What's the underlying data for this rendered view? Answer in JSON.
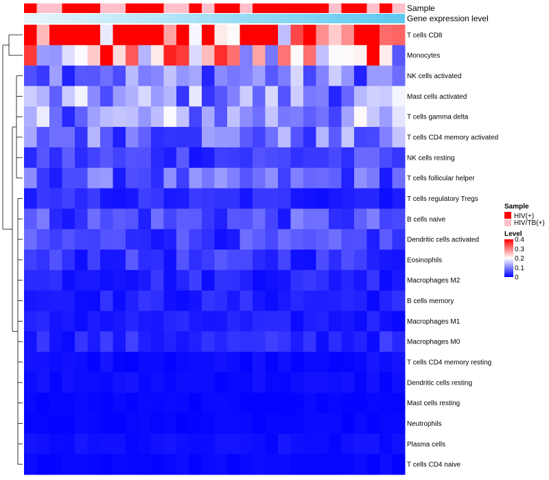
{
  "chart_data": {
    "type": "heatmap",
    "title": "",
    "annotation_tracks": [
      {
        "label": "Sample"
      },
      {
        "label": "Gene expression level"
      }
    ],
    "samples": {
      "count": 30,
      "groups": [
        "HIV(+)",
        "HIV/TB(+)",
        "HIV/TB(+)",
        "HIV(+)",
        "HIV(+)",
        "HIV(+)",
        "HIV/TB(+)",
        "HIV/TB(+)",
        "HIV(+)",
        "HIV(+)",
        "HIV(+)",
        "HIV/TB(+)",
        "HIV/TB(+)",
        "HIV(+)",
        "HIV/TB(+)",
        "HIV(+)",
        "HIV(+)",
        "HIV/TB(+)",
        "HIV(+)",
        "HIV(+)",
        "HIV(+)",
        "HIV(+)",
        "HIV(+)",
        "HIV(+)",
        "HIV/TB(+)",
        "HIV(+)",
        "HIV(+)",
        "HIV/TB(+)",
        "HIV(+)",
        "HIV/TB(+)"
      ]
    },
    "rows": [
      "T cells CD8",
      "Monocytes",
      "NK cells activated",
      "Mast cells activated",
      "T cells gamma delta",
      "T cells CD4 memory activated",
      "NK cells resting",
      "T cells follicular helper",
      "T cells regulatory  Tregs",
      "B cells naive",
      "Dendritic cells activated",
      "Eosinophils",
      "Macrophages M2",
      "B cells memory",
      "Macrophages M1",
      "Macrophages M0",
      "T cells CD4 memory resting",
      "Dendritic cells resting",
      "Mast cells resting",
      "Neutrophils",
      "Plasma cells",
      "T cells CD4 naive"
    ],
    "row_means": [
      0.36,
      0.24,
      0.1,
      0.11,
      0.12,
      0.09,
      0.05,
      0.07,
      0.03,
      0.06,
      0.05,
      0.04,
      0.03,
      0.025,
      0.02,
      0.03,
      0.01,
      0.01,
      0.005,
      0.005,
      0.01,
      0.006
    ],
    "color_scale": {
      "min": 0,
      "max": 0.4,
      "low": "#0000ff",
      "mid": "#ffffff",
      "high": "#ff0000"
    },
    "legend": {
      "position": "right",
      "sample_title": "Sample",
      "sample_entries": [
        {
          "label": "HIV(+)",
          "color": "#ff0000"
        },
        {
          "label": "HIV/TB(+)",
          "color": "#ffc0cb"
        }
      ],
      "level_title": "Level",
      "level_ticks": [
        "0.4",
        "0.3",
        "0.2",
        "0.1",
        "0"
      ]
    }
  }
}
